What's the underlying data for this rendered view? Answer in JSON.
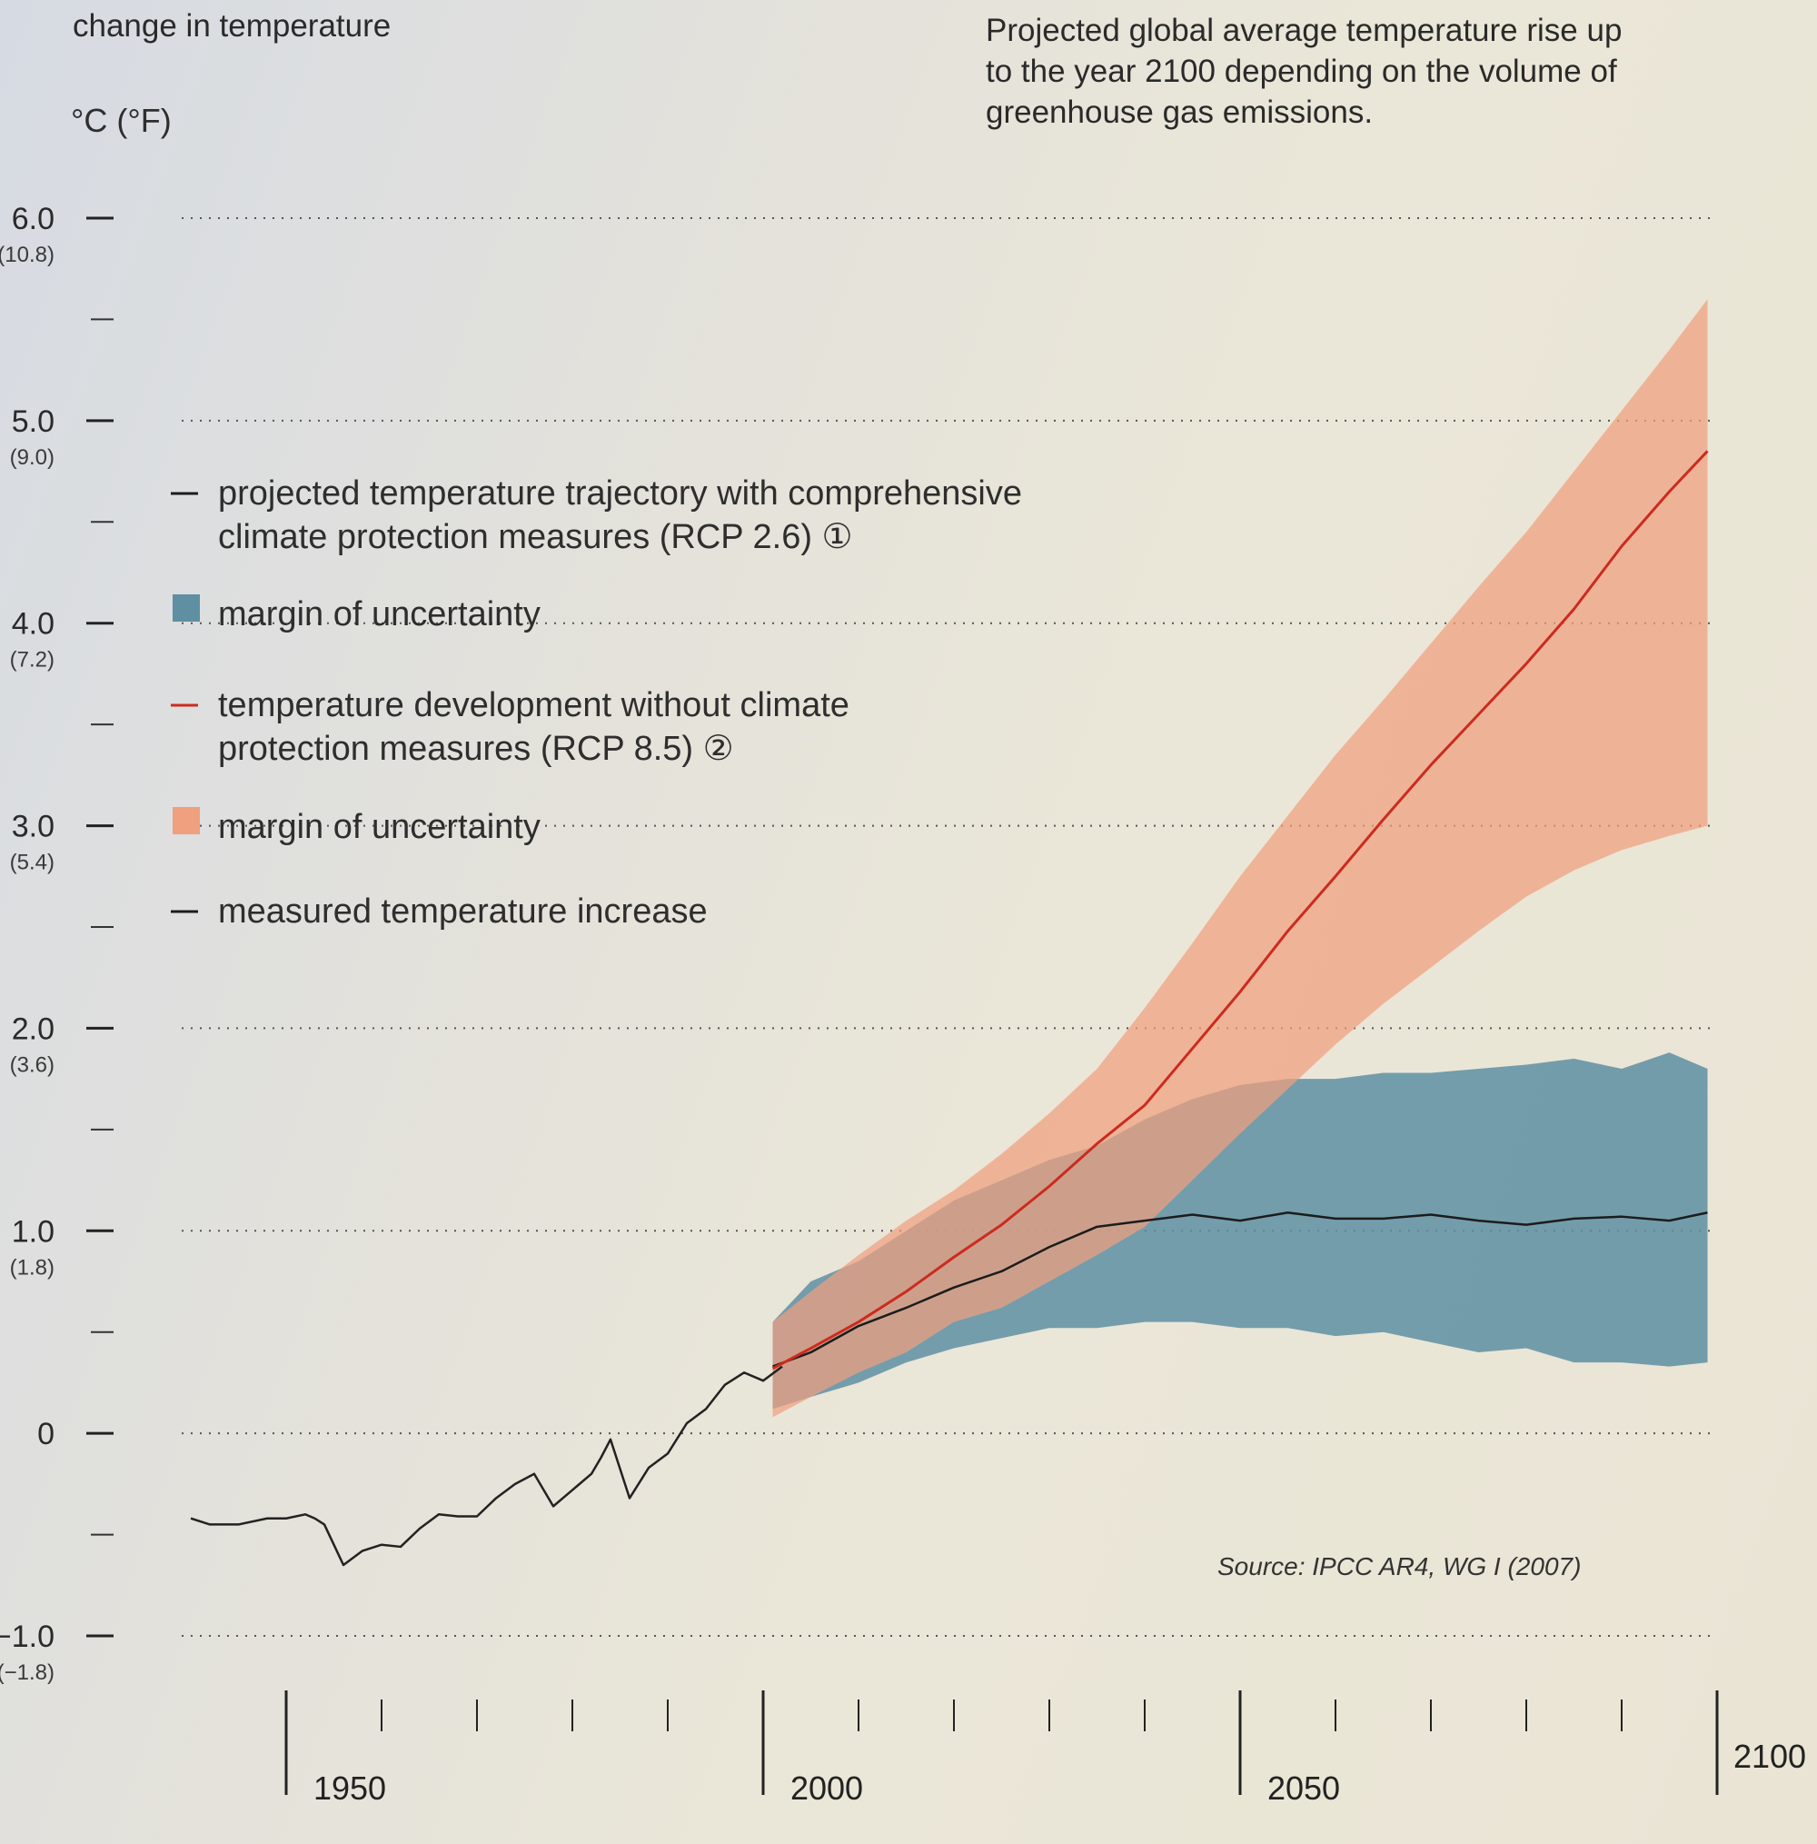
{
  "chart_data": {
    "type": "line",
    "title": "Projected global average temperature rise up to the year 2100 depending on the volume of greenhouse gas emissions.",
    "title_lines": [
      "Projected global average temperature rise up",
      "to the year 2100 depending on the volume of",
      "greenhouse gas emissions."
    ],
    "ylabel": "change in temperature",
    "yunit": "°C (°F)",
    "xlim": [
      1940,
      2100
    ],
    "ylim": [
      -1.0,
      6.0
    ],
    "grid": "dotted horizontal at each whole degree",
    "y_ticks": [
      {
        "value": 6.0,
        "label": "6.0",
        "sub": "(10.8)"
      },
      {
        "value": 5.0,
        "label": "5.0",
        "sub": "(9.0)"
      },
      {
        "value": 4.0,
        "label": "4.0",
        "sub": "(7.2)"
      },
      {
        "value": 3.0,
        "label": "3.0",
        "sub": "(5.4)"
      },
      {
        "value": 2.0,
        "label": "2.0",
        "sub": "(3.6)"
      },
      {
        "value": 1.0,
        "label": "1.0",
        "sub": "(1.8)"
      },
      {
        "value": 0.0,
        "label": "0",
        "sub": ""
      },
      {
        "value": -1.0,
        "label": "−1.0",
        "sub": "(−1.8)"
      }
    ],
    "x_ticks": [
      {
        "value": 1950,
        "label": "1950"
      },
      {
        "value": 2000,
        "label": "2000"
      },
      {
        "value": 2050,
        "label": "2050"
      },
      {
        "value": 2100,
        "label": "2100"
      }
    ],
    "series": [
      {
        "name": "measured temperature increase",
        "color": "#222222",
        "x": [
          1940,
          1942,
          1945,
          1948,
          1950,
          1952,
          1953,
          1954,
          1955,
          1956,
          1958,
          1960,
          1962,
          1964,
          1966,
          1968,
          1970,
          1972,
          1974,
          1976,
          1978,
          1980,
          1982,
          1983,
          1984,
          1986,
          1988,
          1990,
          1992,
          1994,
          1996,
          1998,
          2000,
          2002
        ],
        "values": [
          -0.42,
          -0.45,
          -0.45,
          -0.42,
          -0.42,
          -0.4,
          -0.42,
          -0.45,
          -0.55,
          -0.65,
          -0.58,
          -0.55,
          -0.56,
          -0.47,
          -0.4,
          -0.41,
          -0.41,
          -0.32,
          -0.25,
          -0.2,
          -0.36,
          -0.28,
          -0.2,
          -0.12,
          -0.03,
          -0.32,
          -0.17,
          -0.1,
          0.05,
          0.12,
          0.24,
          0.3,
          0.26,
          0.33
        ]
      },
      {
        "name": "projected temperature trajectory with comprehensive climate protection measures (RCP 2.6)",
        "color": "#1c1c1c",
        "x": [
          2001,
          2005,
          2010,
          2015,
          2020,
          2025,
          2030,
          2035,
          2040,
          2045,
          2050,
          2055,
          2060,
          2065,
          2070,
          2075,
          2080,
          2085,
          2090,
          2095,
          2099
        ],
        "values": [
          0.33,
          0.4,
          0.53,
          0.62,
          0.72,
          0.8,
          0.92,
          1.02,
          1.05,
          1.08,
          1.05,
          1.09,
          1.06,
          1.06,
          1.08,
          1.05,
          1.03,
          1.06,
          1.07,
          1.05,
          1.09
        ]
      },
      {
        "name": "temperature development without climate protection measures (RCP 8.5)",
        "color": "#cc2b1f",
        "x": [
          2001,
          2005,
          2010,
          2015,
          2020,
          2025,
          2030,
          2035,
          2040,
          2045,
          2050,
          2055,
          2060,
          2065,
          2070,
          2075,
          2080,
          2085,
          2090,
          2095,
          2099
        ],
        "values": [
          0.32,
          0.42,
          0.55,
          0.7,
          0.87,
          1.03,
          1.22,
          1.43,
          1.62,
          1.9,
          2.18,
          2.48,
          2.75,
          3.03,
          3.3,
          3.55,
          3.8,
          4.07,
          4.38,
          4.65,
          4.85
        ]
      }
    ],
    "bands": [
      {
        "name": "margin of uncertainty (RCP 2.6)",
        "color": "#5e8fa3",
        "x": [
          2001,
          2005,
          2010,
          2015,
          2020,
          2025,
          2030,
          2035,
          2040,
          2045,
          2050,
          2055,
          2060,
          2065,
          2070,
          2075,
          2080,
          2085,
          2090,
          2095,
          2099
        ],
        "low": [
          0.12,
          0.18,
          0.25,
          0.35,
          0.42,
          0.47,
          0.52,
          0.52,
          0.55,
          0.55,
          0.52,
          0.52,
          0.48,
          0.5,
          0.45,
          0.4,
          0.42,
          0.35,
          0.35,
          0.33,
          0.35
        ],
        "high": [
          0.55,
          0.75,
          0.85,
          1.0,
          1.15,
          1.25,
          1.35,
          1.42,
          1.55,
          1.65,
          1.72,
          1.75,
          1.75,
          1.78,
          1.78,
          1.8,
          1.82,
          1.85,
          1.8,
          1.88,
          1.8
        ]
      },
      {
        "name": "margin of uncertainty (RCP 8.5)",
        "color": "#f0a07e",
        "x": [
          2001,
          2005,
          2010,
          2015,
          2020,
          2025,
          2030,
          2035,
          2040,
          2045,
          2050,
          2055,
          2060,
          2065,
          2070,
          2075,
          2080,
          2085,
          2090,
          2095,
          2099
        ],
        "low": [
          0.08,
          0.18,
          0.3,
          0.4,
          0.55,
          0.62,
          0.75,
          0.88,
          1.02,
          1.25,
          1.48,
          1.7,
          1.92,
          2.12,
          2.3,
          2.48,
          2.65,
          2.78,
          2.88,
          2.95,
          3.0
        ],
        "high": [
          0.55,
          0.7,
          0.88,
          1.05,
          1.2,
          1.38,
          1.58,
          1.8,
          2.1,
          2.42,
          2.75,
          3.05,
          3.35,
          3.62,
          3.9,
          4.18,
          4.45,
          4.75,
          5.05,
          5.35,
          5.6
        ]
      }
    ]
  },
  "legend": [
    {
      "marker": "line",
      "color": "#1c1c1c",
      "lines": [
        "projected temperature trajectory with comprehensive",
        "climate protection measures (RCP 2.6) ①"
      ]
    },
    {
      "marker": "square",
      "color": "#5e8fa3",
      "lines": [
        "margin of uncertainty"
      ]
    },
    {
      "marker": "line",
      "color": "#cc2b1f",
      "lines": [
        "temperature development without climate",
        "protection measures (RCP 8.5) ②"
      ]
    },
    {
      "marker": "square",
      "color": "#f0a07e",
      "lines": [
        "margin of uncertainty"
      ]
    },
    {
      "marker": "line",
      "color": "#1c1c1c",
      "lines": [
        "measured temperature increase"
      ]
    }
  ],
  "source": "Source: IPCC AR4, WG I (2007)"
}
